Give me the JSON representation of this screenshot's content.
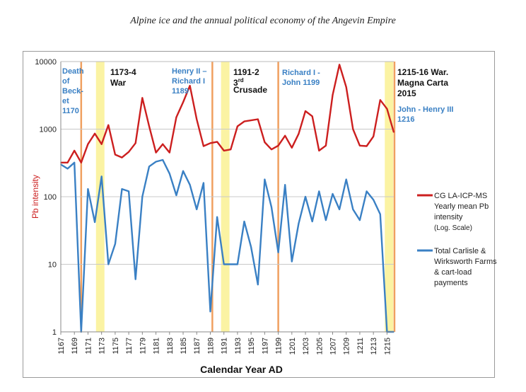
{
  "page": {
    "header": "Alpine ice and the annual political economy of the Angevin Empire"
  },
  "chart_data": {
    "type": "line",
    "title": "",
    "xlabel": "Calendar Year AD",
    "ylabel": "Pb intensity",
    "yscale": "log",
    "ylim": [
      1,
      10000
    ],
    "xlim": [
      1167,
      1216
    ],
    "y_ticks": [
      "1",
      "10",
      "100",
      "1000",
      "10000"
    ],
    "x_ticks": [
      "1167",
      "1169",
      "1171",
      "1173",
      "1175",
      "1177",
      "1179",
      "1181",
      "1183",
      "1185",
      "1187",
      "1189",
      "1191",
      "1193",
      "1195",
      "1197",
      "1199",
      "1201",
      "1203",
      "1205",
      "1207",
      "1209",
      "1211",
      "1213",
      "1215"
    ],
    "series": [
      {
        "name": "CG LA-ICP-MS Yearly mean Pb intensity (Log. Scale)",
        "color": "#cc1f1f",
        "x": [
          1167,
          1168,
          1169,
          1170,
          1171,
          1172,
          1173,
          1174,
          1175,
          1176,
          1177,
          1178,
          1179,
          1180,
          1181,
          1182,
          1183,
          1184,
          1185,
          1186,
          1187,
          1188,
          1189,
          1190,
          1191,
          1192,
          1193,
          1194,
          1195,
          1196,
          1197,
          1198,
          1199,
          1200,
          1201,
          1202,
          1203,
          1204,
          1205,
          1206,
          1207,
          1208,
          1209,
          1210,
          1211,
          1212,
          1213,
          1214,
          1215,
          1216
        ],
        "values": [
          320,
          320,
          480,
          320,
          600,
          860,
          600,
          1150,
          420,
          380,
          460,
          620,
          2900,
          1100,
          450,
          600,
          450,
          1500,
          2500,
          4400,
          1400,
          560,
          620,
          650,
          480,
          500,
          1100,
          1300,
          1350,
          1400,
          640,
          500,
          570,
          800,
          530,
          850,
          1850,
          1550,
          480,
          570,
          3200,
          9000,
          4200,
          1000,
          570,
          560,
          780,
          2700,
          2000,
          900
        ]
      },
      {
        "name": "Total Carlisle & Wirksworth Farms & cart-load payments",
        "color": "#3a80c4",
        "x": [
          1167,
          1168,
          1169,
          1170,
          1171,
          1172,
          1173,
          1174,
          1175,
          1176,
          1177,
          1178,
          1179,
          1180,
          1181,
          1182,
          1183,
          1184,
          1185,
          1186,
          1187,
          1188,
          1189,
          1190,
          1191,
          1192,
          1193,
          1194,
          1195,
          1196,
          1197,
          1198,
          1199,
          1200,
          1201,
          1202,
          1203,
          1204,
          1205,
          1206,
          1207,
          1208,
          1209,
          1210,
          1211,
          1212,
          1213,
          1214,
          1215,
          1216
        ],
        "values": [
          300,
          260,
          320,
          1,
          130,
          42,
          200,
          10,
          20,
          130,
          120,
          6,
          100,
          280,
          330,
          350,
          220,
          105,
          240,
          150,
          65,
          160,
          2,
          50,
          10,
          10,
          10,
          43,
          18,
          5,
          180,
          70,
          15,
          150,
          11,
          40,
          100,
          43,
          120,
          45,
          110,
          65,
          180,
          65,
          45,
          120,
          90,
          55,
          1,
          1
        ]
      }
    ],
    "shaded_years": [
      1172.8,
      1191.2,
      1215.3
    ],
    "event_lines": [
      1170,
      1189.3,
      1199,
      1216.1
    ],
    "annotations": [
      {
        "lines": [
          "Death",
          "of",
          "Beck-",
          "et",
          "1170"
        ],
        "color": "#3a80c4",
        "bold": true
      },
      {
        "lines": [
          "1173-4",
          "War"
        ],
        "color": "#111111",
        "bold": true
      },
      {
        "lines": [
          "Henry II –",
          "Richard I",
          "1189"
        ],
        "color": "#3a80c4",
        "bold": true
      },
      {
        "lines": [
          "1191-2",
          "3rd",
          "Crusade"
        ],
        "color": "#111111",
        "bold": true
      },
      {
        "lines": [
          "Richard I -",
          "John 1199"
        ],
        "color": "#3a80c4",
        "bold": true
      },
      {
        "lines": [
          "1215-16 War.",
          "Magna Carta",
          "2015"
        ],
        "color": "#111111",
        "bold": true
      },
      {
        "lines": [
          "John - Henry III",
          "1216"
        ],
        "color": "#3a80c4",
        "bold": true
      }
    ],
    "legend": [
      {
        "lines": [
          "CG LA-ICP-MS",
          "Yearly mean Pb",
          "intensity",
          "(Log. Scale)"
        ]
      },
      {
        "lines": [
          "Total Carlisle &",
          "Wirksworth Farms",
          "& cart-load",
          "payments"
        ]
      }
    ],
    "colors": {
      "red": "#cc1f1f",
      "blue": "#3a80c4",
      "shade": "#fbf3a3",
      "event": "#f0a060"
    }
  }
}
